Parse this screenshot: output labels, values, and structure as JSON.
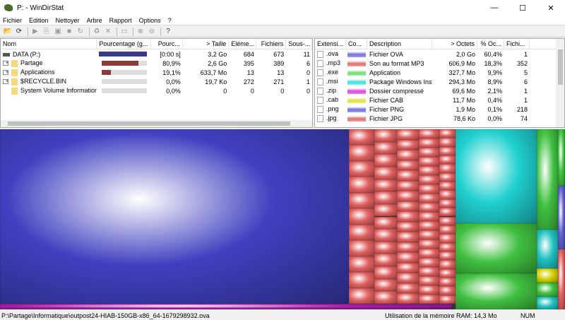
{
  "window": {
    "title": "P: - WinDirStat",
    "minimize": "—",
    "maximize": "☐",
    "close": "✕"
  },
  "menu": [
    "Fichier",
    "Edition",
    "Nettoyer",
    "Arbre",
    "Rapport",
    "Options",
    "?"
  ],
  "toolbar": [
    {
      "icon": "open-folder-icon",
      "glyph": "📂",
      "enabled": true
    },
    {
      "icon": "refresh-icon",
      "glyph": "⟳",
      "enabled": true
    },
    {
      "sep": true
    },
    {
      "icon": "play-icon",
      "glyph": "▶"
    },
    {
      "icon": "copy-icon",
      "glyph": "⎘"
    },
    {
      "icon": "explorer-icon",
      "glyph": "▣"
    },
    {
      "icon": "command-prompt-icon",
      "glyph": "■"
    },
    {
      "icon": "refresh-selected-icon",
      "glyph": "↻"
    },
    {
      "sep": true
    },
    {
      "icon": "recycle-icon",
      "glyph": "♻"
    },
    {
      "icon": "delete-icon",
      "glyph": "✕"
    },
    {
      "sep": true
    },
    {
      "icon": "new-folder-icon",
      "glyph": "▭"
    },
    {
      "sep": true
    },
    {
      "icon": "zoom-in-icon",
      "glyph": "⊕"
    },
    {
      "icon": "zoom-out-icon",
      "glyph": "⊖"
    },
    {
      "sep": true
    },
    {
      "icon": "help-icon",
      "glyph": "?",
      "enabled": true
    }
  ],
  "tree": {
    "columns": [
      "Nom",
      "Pourcentage (g...",
      "Pourc...",
      "> Taille",
      "Eléme...",
      "Fichiers",
      "Sous-..."
    ],
    "rows": [
      {
        "name": "DATA (P:)",
        "type": "drive",
        "percent_bar": 100,
        "bar_color": "#3a3a8c",
        "pct": "[0:00 s]",
        "size": "3,2 Go",
        "items": "684",
        "files": "673",
        "sub": "11"
      },
      {
        "name": "Partage",
        "type": "folder",
        "expand": true,
        "percent_bar": 80.9,
        "bar_color": "#8c3a3a",
        "pct": "80,9%",
        "size": "2,6 Go",
        "items": "395",
        "files": "389",
        "sub": "6"
      },
      {
        "name": "Applications",
        "type": "folder",
        "expand": true,
        "percent_bar": 19.1,
        "bar_color": "#8c3a3a",
        "pct": "19,1%",
        "size": "633,7 Mo",
        "items": "13",
        "files": "13",
        "sub": "0"
      },
      {
        "name": "$RECYCLE.BIN",
        "type": "folder",
        "expand": true,
        "percent_bar": 0,
        "bar_color": "#8c3a3a",
        "pct": "0,0%",
        "size": "19,7 Ko",
        "items": "272",
        "files": "271",
        "sub": "1"
      },
      {
        "name": "System Volume Information",
        "type": "folder",
        "expand": false,
        "percent_bar": 0,
        "bar_color": "#8c3a3a",
        "pct": "0,0%",
        "size": "0",
        "items": "0",
        "files": "0",
        "sub": "0"
      }
    ]
  },
  "extensions": {
    "columns": [
      "Extensi...",
      "Co...",
      "Description",
      "> Octets",
      "% Oc...",
      "Fichi..."
    ],
    "rows": [
      {
        "ext": ".ova",
        "color": "#7070e0",
        "desc": "Fichier OVA",
        "bytes": "2,0 Go",
        "pct": "60,4%",
        "files": "1"
      },
      {
        "ext": ".mp3",
        "color": "#e07070",
        "desc": "Son au format MP3",
        "bytes": "606,9 Mo",
        "pct": "18,3%",
        "files": "352"
      },
      {
        "ext": ".exe",
        "color": "#70e070",
        "desc": "Application",
        "bytes": "327,7 Mo",
        "pct": "9,9%",
        "files": "5"
      },
      {
        "ext": ".msi",
        "color": "#40e0e0",
        "desc": "Package Windows Installer",
        "bytes": "294,3 Mo",
        "pct": "8,9%",
        "files": "6"
      },
      {
        "ext": ".zip",
        "color": "#e040e0",
        "desc": "Dossier compressé",
        "bytes": "69,6 Mo",
        "pct": "2,1%",
        "files": "1"
      },
      {
        "ext": ".cab",
        "color": "#e0e040",
        "desc": "Fichier CAB",
        "bytes": "11,7 Mo",
        "pct": "0,4%",
        "files": "1"
      },
      {
        "ext": ".png",
        "color": "#7070e0",
        "desc": "Fichier PNG",
        "bytes": "1,9 Mo",
        "pct": "0,1%",
        "files": "218"
      },
      {
        "ext": ".jpg",
        "color": "#e07070",
        "desc": "Fichier JPG",
        "bytes": "78,6 Ko",
        "pct": "0,0%",
        "files": "74"
      }
    ]
  },
  "status": {
    "path": "P:\\Partage\\Informatique\\outpost24-HIAB-150GB-x86_64-1679298932.ova",
    "ram_label": "Utilisation de la mémoire RAM:",
    "ram_value": "14,3 Mo",
    "num": "NUM"
  }
}
